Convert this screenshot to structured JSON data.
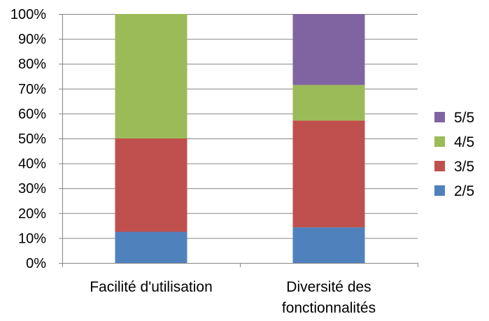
{
  "chart_data": {
    "type": "bar",
    "stacked": true,
    "percent": true,
    "categories": [
      "Facilité d'utilisation",
      "Diversité des fonctionnalités"
    ],
    "category_lines": [
      [
        "Facilité d'utilisation"
      ],
      [
        "Diversité des",
        "fonctionnalités"
      ]
    ],
    "series": [
      {
        "name": "2/5",
        "values": [
          12.5,
          14.3
        ],
        "color": "#4f81bd"
      },
      {
        "name": "3/5",
        "values": [
          37.5,
          42.9
        ],
        "color": "#c0504d"
      },
      {
        "name": "4/5",
        "values": [
          50.0,
          14.3
        ],
        "color": "#9bbb59"
      },
      {
        "name": "5/5",
        "values": [
          0.0,
          28.5
        ],
        "color": "#8064a2"
      }
    ],
    "yticks": [
      "0%",
      "10%",
      "20%",
      "30%",
      "40%",
      "50%",
      "60%",
      "70%",
      "80%",
      "90%",
      "100%"
    ],
    "ylim": [
      0,
      100
    ],
    "grid": true,
    "legend_position": "right",
    "legend_order": [
      "5/5",
      "4/5",
      "3/5",
      "2/5"
    ],
    "gridline_color": "#868686",
    "axis_color": "#868686"
  }
}
